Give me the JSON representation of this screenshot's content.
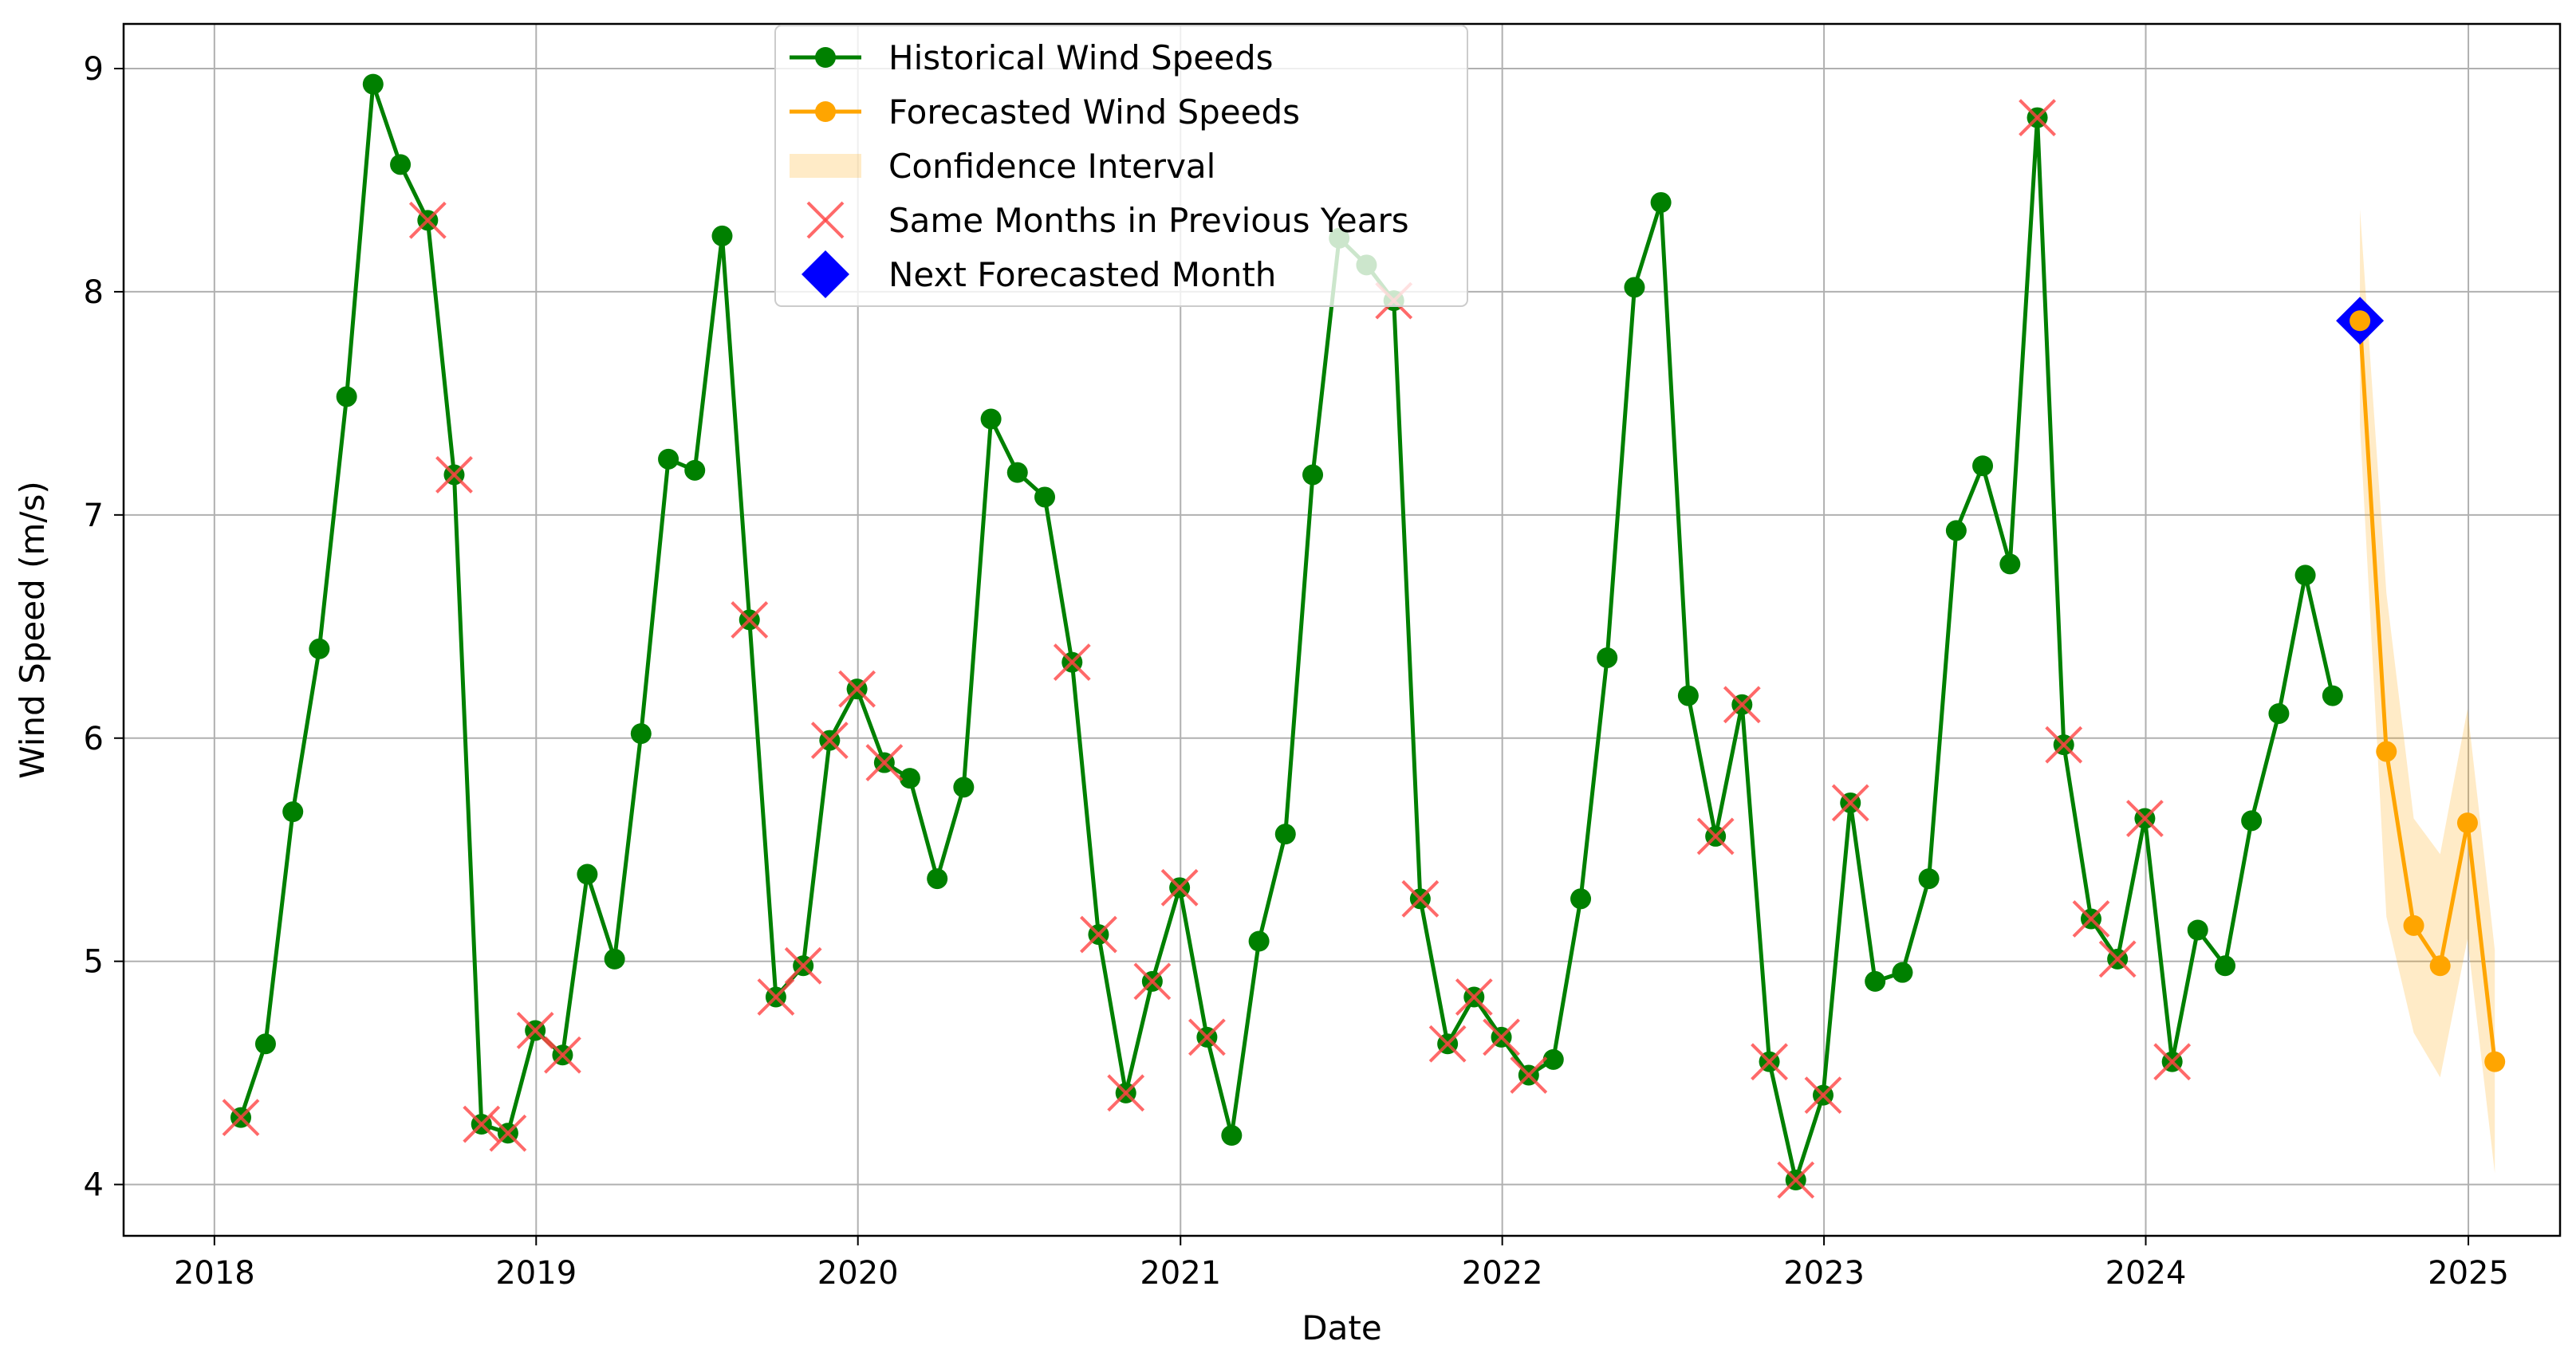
{
  "chart_data": {
    "type": "line",
    "title": "",
    "xlabel": "Date",
    "ylabel": "Wind Speed (m/s)",
    "xlim": [
      "2017-09-20",
      "2025-04-15"
    ],
    "ylim": [
      3.77,
      9.2
    ],
    "x_ticks": [
      "2018-01-01",
      "2019-01-01",
      "2020-01-01",
      "2021-01-01",
      "2022-01-01",
      "2023-01-01",
      "2024-01-01",
      "2025-01-01"
    ],
    "x_tick_labels": [
      "2018",
      "2019",
      "2020",
      "2021",
      "2022",
      "2023",
      "2024",
      "2025"
    ],
    "y_ticks": [
      4,
      5,
      6,
      7,
      8,
      9
    ],
    "y_tick_labels": [
      "4",
      "5",
      "6",
      "7",
      "8",
      "9"
    ],
    "grid": true,
    "legend_position": "top-center",
    "series": [
      {
        "name": "Historical Wind Speeds",
        "color": "#008000",
        "marker": "circle",
        "x": [
          "2018-01-31",
          "2018-02-28",
          "2018-03-31",
          "2018-04-30",
          "2018-05-31",
          "2018-06-30",
          "2018-07-31",
          "2018-08-31",
          "2018-09-30",
          "2018-10-31",
          "2018-11-30",
          "2018-12-31",
          "2019-01-31",
          "2019-02-28",
          "2019-03-31",
          "2019-04-30",
          "2019-05-31",
          "2019-06-30",
          "2019-07-31",
          "2019-08-31",
          "2019-09-30",
          "2019-10-31",
          "2019-11-30",
          "2019-12-31",
          "2020-01-31",
          "2020-02-29",
          "2020-03-31",
          "2020-04-30",
          "2020-05-31",
          "2020-06-30",
          "2020-07-31",
          "2020-08-31",
          "2020-09-30",
          "2020-10-31",
          "2020-11-30",
          "2020-12-31",
          "2021-01-31",
          "2021-02-28",
          "2021-03-31",
          "2021-04-30",
          "2021-05-31",
          "2021-06-30",
          "2021-07-31",
          "2021-08-31",
          "2021-09-30",
          "2021-10-31",
          "2021-11-30",
          "2021-12-31",
          "2022-01-31",
          "2022-02-28",
          "2022-03-31",
          "2022-04-30",
          "2022-05-31",
          "2022-06-30",
          "2022-07-31",
          "2022-08-31",
          "2022-09-30",
          "2022-10-31",
          "2022-11-30",
          "2022-12-31",
          "2023-01-31",
          "2023-02-28",
          "2023-03-31",
          "2023-04-30",
          "2023-05-31",
          "2023-06-30",
          "2023-07-31",
          "2023-08-31",
          "2023-09-30",
          "2023-10-31",
          "2023-11-30",
          "2023-12-31",
          "2024-01-31",
          "2024-02-29",
          "2024-03-31",
          "2024-04-30",
          "2024-05-31",
          "2024-06-30",
          "2024-07-31"
        ],
        "values": [
          4.3,
          4.63,
          5.67,
          6.4,
          7.53,
          8.93,
          8.57,
          8.32,
          7.18,
          4.27,
          4.23,
          4.69,
          4.58,
          5.39,
          5.01,
          6.02,
          7.25,
          7.2,
          8.25,
          6.53,
          4.84,
          4.98,
          5.99,
          6.22,
          5.89,
          5.82,
          5.37,
          5.78,
          7.43,
          7.19,
          7.08,
          6.34,
          5.12,
          4.41,
          4.91,
          5.33,
          4.66,
          4.22,
          5.09,
          5.57,
          7.18,
          8.24,
          8.12,
          7.96,
          5.28,
          4.63,
          4.84,
          4.66,
          4.49,
          4.56,
          5.28,
          6.36,
          8.02,
          8.4,
          6.19,
          5.56,
          6.15,
          4.55,
          4.02,
          4.4,
          5.71,
          4.91,
          4.95,
          5.37,
          6.93,
          7.22,
          6.78,
          8.78,
          5.97,
          5.19,
          5.01,
          5.64,
          4.55,
          5.14,
          4.98,
          5.63,
          6.11,
          6.73,
          6.19
        ]
      },
      {
        "name": "Forecasted Wind Speeds",
        "color": "#FFA500",
        "marker": "circle",
        "x": [
          "2024-08-31",
          "2024-09-30",
          "2024-10-31",
          "2024-11-30",
          "2024-12-31",
          "2025-01-31"
        ],
        "values": [
          7.87,
          5.94,
          5.16,
          4.98,
          5.62,
          4.55
        ]
      }
    ],
    "confidence_interval": {
      "name": "Confidence Interval",
      "color": "#FFA500",
      "x": [
        "2024-08-31",
        "2024-09-30",
        "2024-10-31",
        "2024-11-30",
        "2024-12-31",
        "2025-01-31"
      ],
      "lower": [
        7.4,
        5.2,
        4.68,
        4.48,
        5.1,
        4.05
      ],
      "upper": [
        8.37,
        6.65,
        5.64,
        5.48,
        6.13,
        5.05
      ]
    },
    "same_months_previous_years": {
      "name": "Same Months in Previous Years",
      "color": "#FF4444",
      "marker": "x",
      "x": [
        "2018-01-31",
        "2018-08-31",
        "2018-09-30",
        "2018-10-31",
        "2018-11-30",
        "2018-12-31",
        "2019-01-31",
        "2019-08-31",
        "2019-09-30",
        "2019-10-31",
        "2019-11-30",
        "2019-12-31",
        "2020-01-31",
        "2020-08-31",
        "2020-09-30",
        "2020-10-31",
        "2020-11-30",
        "2020-12-31",
        "2021-01-31",
        "2021-08-31",
        "2021-09-30",
        "2021-10-31",
        "2021-11-30",
        "2021-12-31",
        "2022-01-31",
        "2022-08-31",
        "2022-09-30",
        "2022-10-31",
        "2022-11-30",
        "2022-12-31",
        "2023-01-31",
        "2023-08-31",
        "2023-09-30",
        "2023-10-31",
        "2023-11-30",
        "2023-12-31",
        "2024-01-31"
      ],
      "values": [
        4.3,
        8.32,
        7.18,
        4.27,
        4.23,
        4.69,
        4.58,
        6.53,
        4.84,
        4.98,
        5.99,
        6.22,
        5.89,
        6.34,
        5.12,
        4.41,
        4.91,
        5.33,
        4.66,
        7.96,
        5.28,
        4.63,
        4.84,
        4.66,
        4.49,
        5.56,
        6.15,
        4.55,
        4.02,
        4.4,
        5.71,
        8.78,
        5.97,
        5.19,
        5.01,
        5.64,
        4.55
      ]
    },
    "next_forecasted_month": {
      "name": "Next Forecasted Month",
      "color": "#0000FF",
      "marker": "diamond",
      "x": "2024-08-31",
      "value": 7.87
    },
    "legend": [
      {
        "label": "Historical Wind Speeds",
        "kind": "line-marker",
        "color": "#008000"
      },
      {
        "label": "Forecasted Wind Speeds",
        "kind": "line-marker",
        "color": "#FFA500"
      },
      {
        "label": "Confidence Interval",
        "kind": "patch",
        "color": "#FFA500"
      },
      {
        "label": "Same Months in Previous Years",
        "kind": "x-marker",
        "color": "#FF4444"
      },
      {
        "label": "Next Forecasted Month",
        "kind": "diamond",
        "color": "#0000FF"
      }
    ]
  }
}
